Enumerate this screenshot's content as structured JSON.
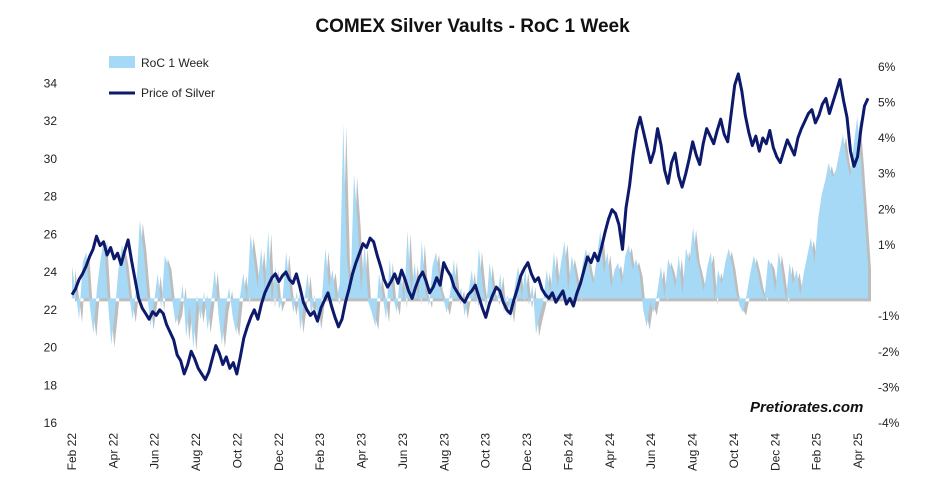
{
  "chart_data": {
    "type": "line",
    "title": "COMEX Silver Vaults - RoC 1 Week",
    "watermark": "Pretiorates.com",
    "x_tick_labels": [
      "Feb 22",
      "Apr 22",
      "Jun 22",
      "Aug 22",
      "Oct 22",
      "Dec 22",
      "Feb 23",
      "Apr 23",
      "Jun 23",
      "Aug 23",
      "Oct 23",
      "Dec 23",
      "Feb 24",
      "Apr 24",
      "Jun 24",
      "Aug 24",
      "Oct 24",
      "Dec 24",
      "Feb 25",
      "Apr 25"
    ],
    "y_left": {
      "ticks": [
        16,
        18,
        20,
        22,
        24,
        26,
        28,
        30,
        32,
        34
      ],
      "ylim": [
        16,
        35.5
      ]
    },
    "y_right": {
      "ticks": [
        "-4%",
        "-3%",
        "-2%",
        "-1%",
        "1%",
        "2%",
        "3%",
        "4%",
        "5%",
        "6%"
      ],
      "values": [
        -4,
        -3,
        -2,
        -1,
        1,
        2,
        3,
        4,
        5,
        6
      ],
      "ylim": [
        -4,
        6.33
      ]
    },
    "legend": {
      "placement": "top-left"
    },
    "series": [
      {
        "name": "RoC 1 Week",
        "kind": "area",
        "axis": "right",
        "color": "#a6d9f5",
        "shadow_color": "#bdbdbd",
        "values": [
          0.4,
          -0.3,
          -1.1,
          0.5,
          0.8,
          -0.7,
          -1.5,
          -0.2,
          0.6,
          1.2,
          -0.5,
          -1.8,
          -0.9,
          0.3,
          1.0,
          0.5,
          -0.4,
          -1.1,
          -0.2,
          1.7,
          0.9,
          -0.3,
          -1.3,
          -0.6,
          0.2,
          -0.8,
          0.7,
          0.4,
          -0.5,
          -1.2,
          -0.9,
          -0.1,
          -1.6,
          -0.7,
          -1.9,
          -0.4,
          -1.1,
          -0.3,
          -1.4,
          -0.6,
          0.3,
          -0.9,
          -1.8,
          -0.8,
          -0.2,
          -1.0,
          -1.5,
          -0.5,
          0.2,
          -0.6,
          1.3,
          0.6,
          -0.2,
          0.9,
          -0.3,
          1.4,
          -0.7,
          0.4,
          -0.8,
          -0.5,
          0.8,
          -0.2,
          -0.9,
          -0.3,
          -1.4,
          -0.6,
          0.2,
          -1.0,
          -0.4,
          -1.3,
          -0.5,
          0.9,
          -0.2,
          0.3,
          -0.6,
          -0.1,
          4.4,
          0.6,
          -0.4,
          3.0,
          1.6,
          -0.3,
          1.0,
          -0.6,
          -0.9,
          -1.3,
          0.2,
          -0.4,
          -1.1,
          0.6,
          -0.5,
          -0.9,
          0.3,
          -0.7,
          1.4,
          -0.4,
          0.5,
          -0.6,
          1.1,
          -0.3,
          -0.7,
          0.4,
          0.8,
          -0.2,
          -0.5,
          -0.9,
          -0.3,
          0.6,
          -0.6,
          -0.2,
          -1.0,
          -0.4,
          0.3,
          -0.7,
          0.9,
          -0.1,
          -0.8,
          0.5,
          -0.3,
          -0.6,
          0.2,
          -0.9,
          -0.4,
          -1.1,
          -0.2,
          0.4,
          -0.5,
          0.3,
          -0.7,
          -0.1,
          -1.5,
          -1.0,
          -0.6,
          0.3,
          -0.4,
          0.8,
          -0.2,
          0.5,
          1.1,
          -0.3,
          0.7,
          0.2,
          -0.5,
          0.4,
          0.9,
          0.3,
          -0.1,
          0.6,
          1.4,
          0.2,
          0.8,
          -0.2,
          0.3,
          0.5,
          -0.1,
          0.7,
          1.0,
          0.3,
          0.6,
          0.2,
          -0.8,
          -1.3,
          -0.6,
          -0.9,
          -0.3,
          0.4,
          -0.5,
          0.6,
          0.3,
          -0.2,
          0.7,
          -0.4,
          0.9,
          0.5,
          1.5,
          0.6,
          0.2,
          -0.3,
          0.4,
          0.8,
          -0.6,
          0.3,
          -0.1,
          0.5,
          0.9,
          0.4,
          -0.3,
          -0.7,
          -0.9,
          -0.4,
          0.2,
          0.7,
          0.3,
          -0.2,
          -0.5,
          0.6,
          0.4,
          -0.3,
          0.8,
          0.2,
          -0.6,
          0.5,
          -0.1,
          0.3,
          -0.4,
          0.2,
          0.7,
          1.2,
          0.5,
          1.7,
          2.4,
          2.8,
          3.3,
          2.9,
          3.1,
          3.6,
          4.1,
          3.4,
          2.9,
          3.8,
          4.6,
          3.3,
          1.9,
          0.4
        ],
        "note": "weekly rate of change, Feb 22 to Apr 25 (estimated)"
      },
      {
        "name": "Price of Silver",
        "kind": "line",
        "axis": "left",
        "color": "#0d1a6b",
        "values": [
          22.8,
          23.1,
          23.6,
          23.9,
          24.3,
          24.8,
          25.2,
          25.9,
          25.4,
          25.6,
          24.9,
          25.3,
          24.7,
          25.0,
          24.4,
          25.1,
          25.7,
          24.6,
          23.6,
          22.6,
          22.1,
          21.8,
          21.5,
          21.9,
          21.7,
          22.0,
          21.8,
          21.2,
          20.8,
          20.4,
          19.6,
          19.3,
          18.6,
          19.1,
          19.8,
          19.4,
          18.9,
          18.6,
          18.3,
          18.7,
          19.4,
          20.1,
          19.7,
          19.1,
          19.5,
          18.9,
          19.2,
          18.6,
          19.5,
          20.5,
          21.1,
          21.6,
          22.0,
          21.5,
          22.3,
          22.9,
          23.3,
          23.7,
          23.9,
          23.5,
          23.8,
          24.0,
          23.6,
          23.4,
          23.9,
          23.2,
          22.4,
          22.0,
          21.7,
          21.9,
          21.4,
          22.1,
          22.5,
          22.9,
          22.2,
          21.6,
          21.1,
          21.5,
          22.4,
          23.1,
          23.9,
          24.5,
          25.0,
          25.5,
          25.3,
          25.8,
          25.6,
          24.9,
          24.3,
          23.6,
          23.2,
          23.5,
          23.9,
          23.4,
          24.1,
          23.6,
          23.0,
          22.6,
          23.2,
          23.7,
          24.0,
          23.5,
          22.9,
          23.2,
          23.7,
          23.3,
          24.5,
          24.1,
          23.8,
          23.2,
          22.9,
          22.6,
          22.4,
          22.8,
          23.0,
          23.3,
          22.7,
          22.1,
          21.6,
          22.3,
          22.8,
          23.2,
          23.0,
          22.4,
          22.0,
          21.8,
          22.5,
          23.1,
          23.8,
          24.2,
          24.5,
          23.9,
          23.5,
          23.7,
          23.1,
          22.8,
          22.6,
          22.9,
          22.4,
          22.7,
          23.0,
          22.3,
          22.6,
          22.2,
          22.9,
          23.4,
          24.1,
          24.8,
          24.5,
          25.0,
          24.6,
          25.3,
          26.1,
          26.8,
          27.3,
          27.1,
          26.5,
          25.2,
          27.4,
          28.6,
          30.2,
          31.5,
          32.2,
          31.4,
          30.6,
          29.8,
          30.4,
          31.6,
          30.7,
          29.4,
          28.7,
          29.8,
          30.3,
          29.1,
          28.5,
          29.2,
          30.0,
          30.9,
          30.2,
          29.7,
          30.8,
          31.6,
          31.2,
          30.8,
          31.5,
          32.1,
          31.3,
          30.9,
          32.4,
          33.9,
          34.5,
          33.6,
          32.3,
          31.4,
          30.7,
          31.2,
          30.4,
          31.1,
          30.8,
          31.5,
          30.6,
          30.1,
          29.8,
          30.4,
          31.0,
          30.6,
          30.2,
          31.1,
          31.6,
          32.0,
          32.4,
          32.6,
          31.9,
          32.3,
          32.9,
          33.2,
          32.4,
          33.0,
          33.6,
          34.2,
          33.1,
          32.2,
          30.4,
          29.6,
          30.1,
          31.6,
          32.8,
          33.2
        ]
      }
    ]
  }
}
